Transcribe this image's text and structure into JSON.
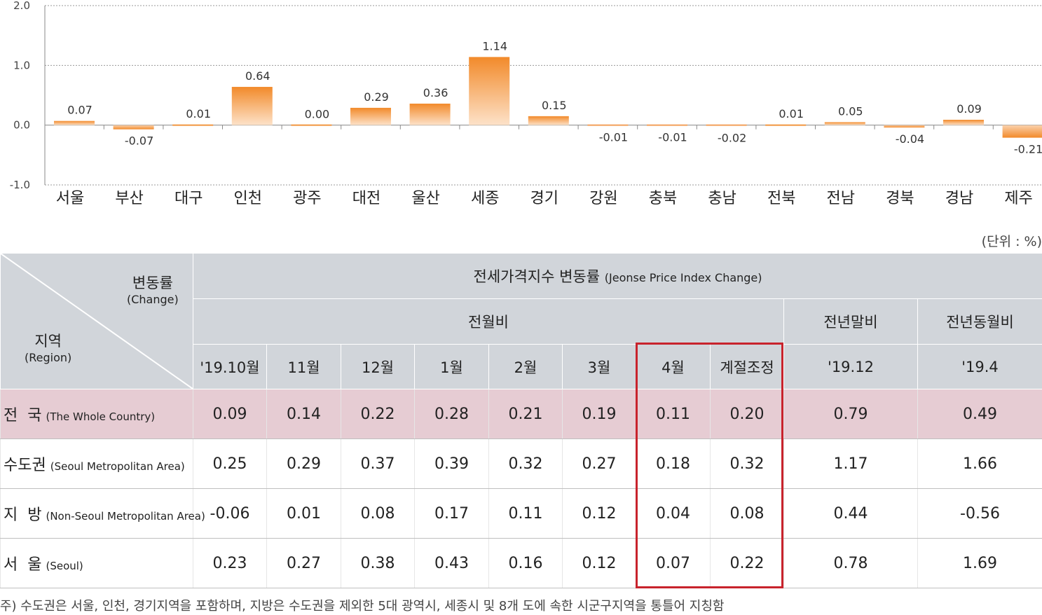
{
  "chart_data": {
    "type": "bar",
    "categories": [
      "서울",
      "부산",
      "대구",
      "인천",
      "광주",
      "대전",
      "울산",
      "세종",
      "경기",
      "강원",
      "충북",
      "충남",
      "전북",
      "전남",
      "경북",
      "경남",
      "제주"
    ],
    "values": [
      0.07,
      -0.07,
      0.01,
      0.64,
      0.0,
      0.29,
      0.36,
      1.14,
      0.15,
      -0.01,
      -0.01,
      -0.02,
      0.01,
      0.05,
      -0.04,
      0.09,
      -0.21
    ],
    "value_labels": [
      "0.07",
      "-0.07",
      "0.01",
      "0.64",
      "0.00",
      "0.29",
      "0.36",
      "1.14",
      "0.15",
      "-0.01",
      "-0.01",
      "-0.02",
      "0.01",
      "0.05",
      "-0.04",
      "0.09",
      "-0.21"
    ],
    "y_ticks": [
      "2.0",
      "1.0",
      "0.0",
      "-1.0"
    ],
    "ylim": [
      -1.0,
      2.0
    ],
    "grid": true,
    "colors": {
      "bar_top": "#f28a2a",
      "bar_bottom": "#fde2c9",
      "bar_neg": "#f7a964"
    }
  },
  "unit_label": "(단위 : %)",
  "table": {
    "corner": {
      "change_label": "변동률",
      "change_sub": "(Change)",
      "region_label": "지역",
      "region_sub": "(Region)"
    },
    "title": "전세가격지수 변동률",
    "title_sub": "(Jeonse Price Index Change)",
    "groups": {
      "monthly": "전월비",
      "ytd": "전년말비",
      "yoy": "전년동월비"
    },
    "columns": [
      "'19.10월",
      "11월",
      "12월",
      "1월",
      "2월",
      "3월",
      "4월",
      "계절조정",
      "'19.12",
      "'19.4"
    ],
    "rows": [
      {
        "name": "전  국",
        "sub": "(The Whole Country)",
        "values": [
          "0.09",
          "0.14",
          "0.22",
          "0.28",
          "0.21",
          "0.19",
          "0.11",
          "0.20",
          "0.79",
          "0.49"
        ]
      },
      {
        "name": "수도권",
        "sub": "(Seoul Metropolitan Area)",
        "values": [
          "0.25",
          "0.29",
          "0.37",
          "0.39",
          "0.32",
          "0.27",
          "0.18",
          "0.32",
          "1.17",
          "1.66"
        ]
      },
      {
        "name": "지  방",
        "sub": "(Non-Seoul Metropolitan Area)",
        "values": [
          "-0.06",
          "0.01",
          "0.08",
          "0.17",
          "0.11",
          "0.12",
          "0.04",
          "0.08",
          "0.44",
          "-0.56"
        ]
      },
      {
        "name": "서  울",
        "sub": "(Seoul)",
        "values": [
          "0.23",
          "0.27",
          "0.38",
          "0.43",
          "0.16",
          "0.12",
          "0.07",
          "0.22",
          "0.78",
          "1.69"
        ]
      }
    ]
  },
  "footnote": "주) 수도권은 서울, 인천, 경기지역을 포함하며, 지방은 수도권을 제외한 5대 광역시, 세종시 및 8개 도에 속한 시군구지역을 통틀어 지칭함",
  "colors": {
    "header_bg": "#d1d5da",
    "highlight_row": "#e6ccd3",
    "highlight_box": "#c8232c"
  }
}
